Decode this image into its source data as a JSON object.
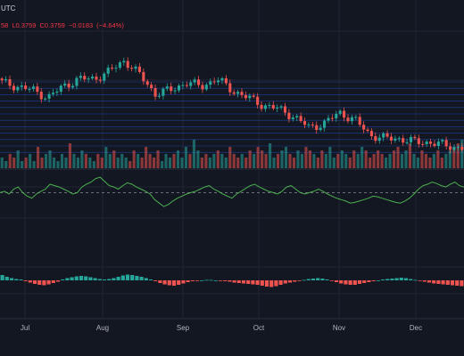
{
  "header": {
    "symbol": "UTC",
    "ohlc": {
      "o_suffix": "58",
      "low_label": "L",
      "low": "0.3759",
      "close_label": "C",
      "close": "0.3759",
      "change": "−0.0183",
      "change_pct": "(−4.64%)"
    }
  },
  "colors": {
    "background": "#131722",
    "up": "#26a69a",
    "down": "#ef5350",
    "grid": "#1f2433",
    "rsi_line": "#4caf50",
    "h_levels": "#2962ff"
  },
  "chart_data": [
    {
      "type": "candlestick",
      "title": "",
      "x_ticks": [
        "Jul",
        "Aug",
        "Sep",
        "Oct",
        "Nov",
        "Dec"
      ],
      "close_path": [
        [
          "Jun",
          0.55
        ],
        [
          "Jul",
          0.54
        ],
        [
          "Jul",
          0.53
        ],
        [
          "Jul",
          0.51
        ],
        [
          "Jul",
          0.54
        ],
        [
          "Jul",
          0.56
        ],
        [
          "Aug",
          0.56
        ],
        [
          "Aug",
          0.58
        ],
        [
          "Aug",
          0.61
        ],
        [
          "Aug",
          0.57
        ],
        [
          "Aug",
          0.52
        ],
        [
          "Sep",
          0.53
        ],
        [
          "Sep",
          0.55
        ],
        [
          "Sep",
          0.54
        ],
        [
          "Sep",
          0.56
        ],
        [
          "Sep",
          0.53
        ],
        [
          "Oct",
          0.51
        ],
        [
          "Oct",
          0.49
        ],
        [
          "Oct",
          0.48
        ],
        [
          "Oct",
          0.46
        ],
        [
          "Oct",
          0.43
        ],
        [
          "Nov",
          0.44
        ],
        [
          "Nov",
          0.47
        ],
        [
          "Nov",
          0.45
        ],
        [
          "Nov",
          0.41
        ],
        [
          "Nov",
          0.4
        ],
        [
          "Dec",
          0.4
        ],
        [
          "Dec",
          0.39
        ],
        [
          "Dec",
          0.39
        ],
        [
          "Dec",
          0.38
        ],
        [
          "Dec",
          0.376
        ]
      ],
      "h_levels": 12
    },
    {
      "type": "bar",
      "title": "",
      "relative_values": [
        3,
        2,
        4,
        3,
        5,
        2,
        3,
        4,
        2,
        6,
        3,
        4,
        5,
        3,
        2,
        4,
        3,
        7,
        4,
        3,
        5,
        4,
        3,
        2,
        4,
        3,
        6,
        4,
        5,
        3,
        4,
        3,
        2,
        5,
        4,
        3,
        6,
        4,
        3,
        5,
        2,
        4,
        3,
        4,
        5,
        3,
        6,
        4,
        8,
        5,
        3,
        4,
        3,
        4,
        5,
        4,
        3,
        6,
        4,
        3,
        4,
        3,
        5,
        4,
        6,
        5,
        4,
        7,
        3,
        4,
        5,
        6,
        4,
        3,
        5,
        4,
        6,
        5,
        4,
        3,
        5,
        4,
        6,
        3,
        4,
        5,
        4,
        3,
        5,
        4,
        6,
        5,
        3,
        4,
        5,
        4,
        3,
        4,
        5,
        6,
        4,
        5,
        7,
        4,
        3,
        5,
        4,
        3,
        4,
        5,
        3,
        4,
        5,
        6,
        7,
        8
      ]
    },
    {
      "type": "line",
      "title": "",
      "values": [
        50,
        52,
        48,
        55,
        58,
        50,
        45,
        42,
        48,
        52,
        55,
        62,
        60,
        58,
        55,
        52,
        48,
        50,
        58,
        62,
        65,
        70,
        72,
        66,
        60,
        58,
        55,
        60,
        64,
        62,
        58,
        55,
        52,
        48,
        40,
        35,
        30,
        33,
        38,
        42,
        45,
        48,
        50,
        52,
        55,
        58,
        60,
        55,
        52,
        48,
        45,
        42,
        48,
        52,
        56,
        60,
        62,
        58,
        55,
        52,
        50,
        48,
        52,
        58,
        60,
        55,
        50,
        48,
        50,
        52,
        55,
        52,
        48,
        45,
        42,
        40,
        38,
        35,
        36,
        38,
        40,
        42,
        45,
        44,
        42,
        40,
        38,
        36,
        35,
        38,
        42,
        48,
        55,
        60,
        62,
        65,
        63,
        60,
        58,
        62,
        65,
        60,
        58
      ],
      "ylim": [
        20,
        90
      ],
      "midline": 50
    },
    {
      "type": "bar",
      "title": "",
      "values": [
        1.2,
        0.8,
        0.5,
        0.3,
        0.2,
        -0.2,
        -0.5,
        -0.8,
        -1.0,
        -1.1,
        -0.9,
        -0.6,
        -0.3,
        0.2,
        0.5,
        0.7,
        0.9,
        1.0,
        0.9,
        0.7,
        0.5,
        0.3,
        0.2,
        0.3,
        0.5,
        0.8,
        1.1,
        1.3,
        1.2,
        1.0,
        0.8,
        0.5,
        0.2,
        -0.2,
        -0.6,
        -0.9,
        -1.1,
        -1.2,
        -1.0,
        -0.7,
        -0.4,
        -0.2,
        -0.1,
        0.0,
        0.1,
        0.1,
        0.0,
        -0.1,
        -0.2,
        -0.3,
        -0.5,
        -0.6,
        -0.7,
        -0.8,
        -0.9,
        -1.0,
        -1.2,
        -1.4,
        -1.5,
        -1.3,
        -1.0,
        -0.7,
        -0.5,
        -0.3,
        -0.1,
        0.1,
        0.3,
        0.4,
        0.5,
        0.4,
        0.2,
        -0.1,
        -0.4,
        -0.7,
        -0.9,
        -1.0,
        -1.0,
        -0.8,
        -0.6,
        -0.4,
        -0.2,
        0.0,
        0.2,
        0.3,
        0.4,
        0.5,
        0.6,
        0.5,
        0.3,
        0.1,
        -0.1,
        -0.3,
        -0.5,
        -0.7,
        -0.8,
        -0.9,
        -1.0,
        -1.1,
        -1.2,
        -1.3
      ]
    }
  ]
}
